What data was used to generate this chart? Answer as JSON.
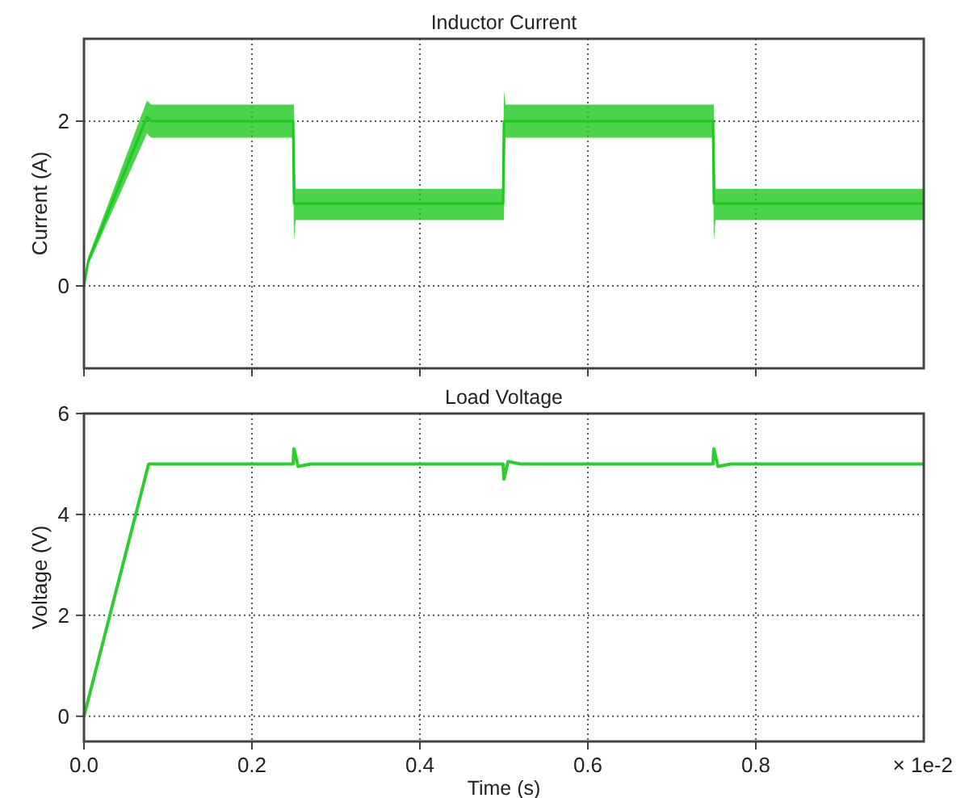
{
  "chart_data": [
    {
      "type": "line",
      "title": "Inductor Current",
      "ylabel": "Current (A)",
      "xlim": [
        0,
        1.0
      ],
      "xticks": [
        {
          "value": 0,
          "label": null
        },
        {
          "value": 0.2,
          "label": null
        },
        {
          "value": 0.4,
          "label": null
        },
        {
          "value": 0.6,
          "label": null
        },
        {
          "value": 0.8,
          "label": null
        }
      ],
      "ylim": [
        -1,
        3
      ],
      "yticks": [
        0,
        2
      ],
      "grid": true,
      "tick_labels": "y",
      "series": [
        {
          "color": "#1ec81e",
          "x": [
            0,
            0.005,
            0.075,
            0.08,
            0.249,
            0.25,
            0.252,
            0.255,
            0.499,
            0.5,
            0.502,
            0.505,
            0.749,
            0.75,
            0.752,
            0.755,
            1.0
          ],
          "values": [
            0,
            0.3,
            2.05,
            2.0,
            2.0,
            1.0,
            1.0,
            1.0,
            1.0,
            2.0,
            2.0,
            2.0,
            2.0,
            1.0,
            1.0,
            1.0,
            1.0
          ],
          "lower": [
            0,
            0.25,
            1.85,
            1.8,
            1.8,
            0.55,
            0.8,
            0.8,
            0.8,
            0.8,
            1.8,
            1.8,
            1.8,
            0.55,
            0.8,
            0.8,
            0.8
          ],
          "upper": [
            0,
            0.35,
            2.25,
            2.2,
            2.2,
            2.2,
            1.18,
            1.18,
            1.18,
            2.37,
            2.2,
            2.2,
            2.2,
            2.2,
            1.18,
            1.18,
            1.18
          ]
        }
      ]
    },
    {
      "type": "line",
      "title": "Load Voltage",
      "xlabel": "Time (s)",
      "ylabel": "Voltage (V)",
      "xlim": [
        0,
        1.0
      ],
      "xticks": [
        {
          "value": 0,
          "label": "0.0"
        },
        {
          "value": 0.2,
          "label": "0.2"
        },
        {
          "value": 0.4,
          "label": "0.4"
        },
        {
          "value": 0.6,
          "label": "0.6"
        },
        {
          "value": 0.8,
          "label": "0.8"
        }
      ],
      "ylim": [
        -0.5,
        6
      ],
      "yticks": [
        0,
        2,
        4,
        6
      ],
      "grid": true,
      "annotations": [
        "× 1e-2"
      ],
      "series": [
        {
          "color": "#2ecc2e",
          "x": [
            0,
            0.077,
            0.249,
            0.25,
            0.255,
            0.27,
            0.499,
            0.5,
            0.505,
            0.52,
            0.749,
            0.75,
            0.755,
            0.77,
            1.0
          ],
          "values": [
            0,
            5.0,
            5.0,
            5.3,
            4.95,
            5.0,
            5.0,
            4.7,
            5.05,
            5.0,
            5.0,
            5.3,
            4.95,
            5.0,
            5.0
          ]
        }
      ]
    }
  ]
}
